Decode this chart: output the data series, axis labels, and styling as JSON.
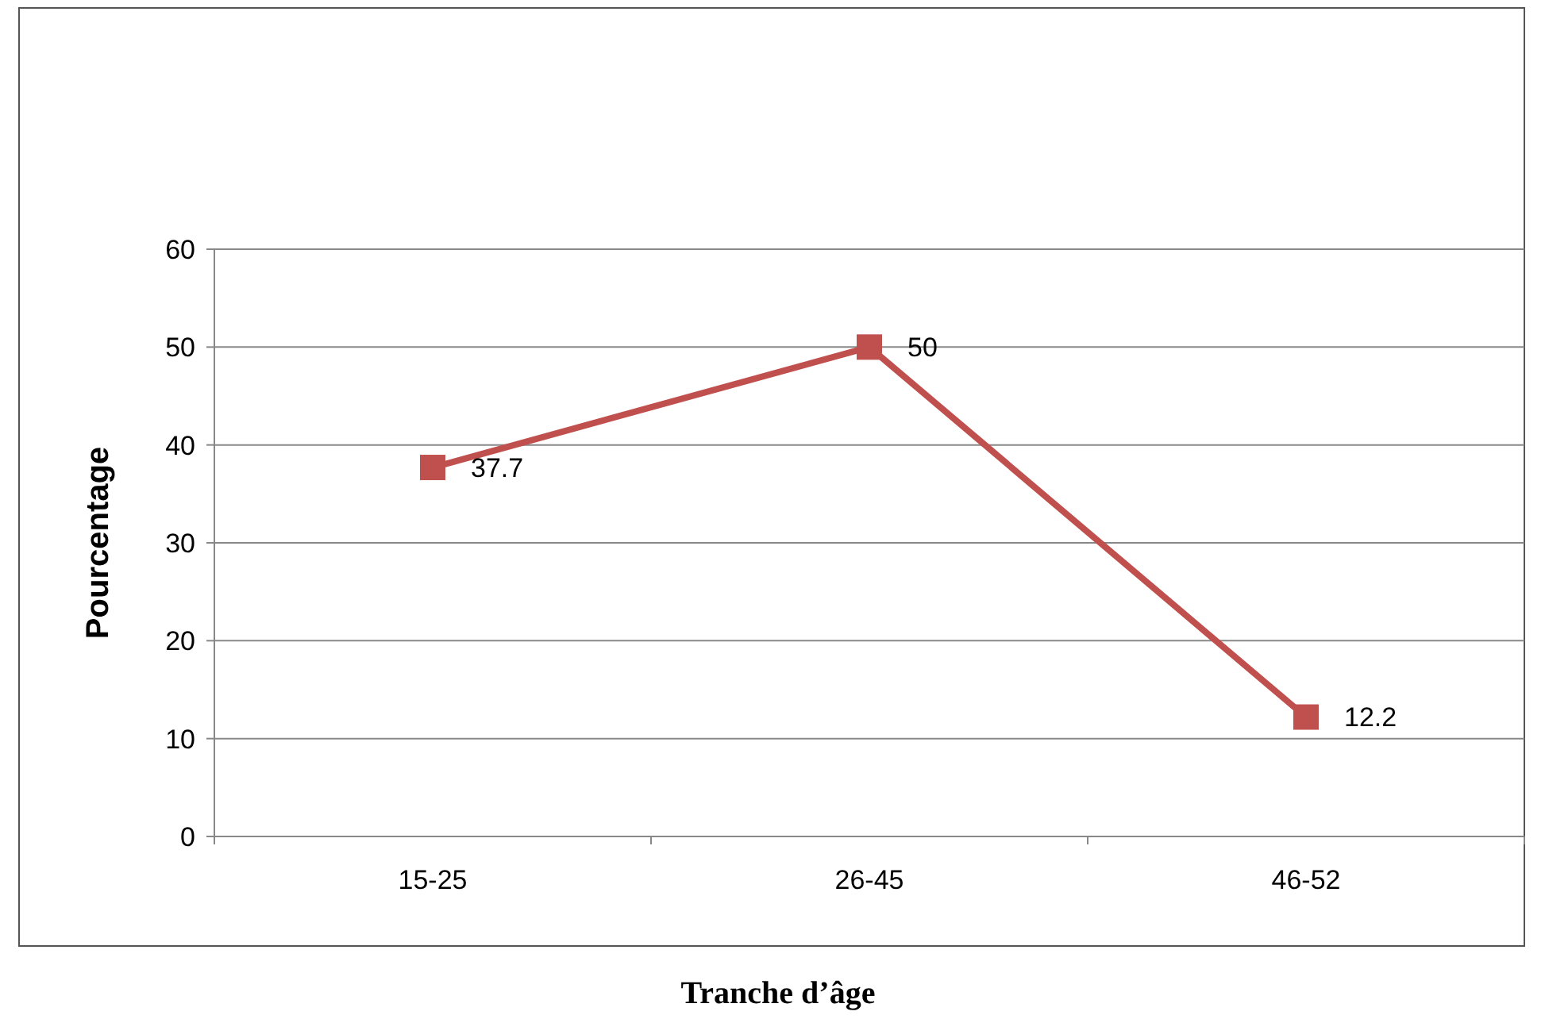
{
  "chart_data": {
    "type": "line",
    "xlabel": "Tranche d’âge",
    "ylabel": "Pourcentage",
    "categories": [
      "15-25",
      "26-45",
      "46-52"
    ],
    "series": [
      {
        "color": "#c0504d",
        "values": [
          37.7,
          50,
          12.2
        ]
      }
    ],
    "ylim": [
      0,
      60
    ],
    "yticks": [
      0,
      10,
      20,
      30,
      40,
      50,
      60
    ],
    "grid": "y",
    "marker": "square",
    "line_style": "solid",
    "data_labels": true
  }
}
